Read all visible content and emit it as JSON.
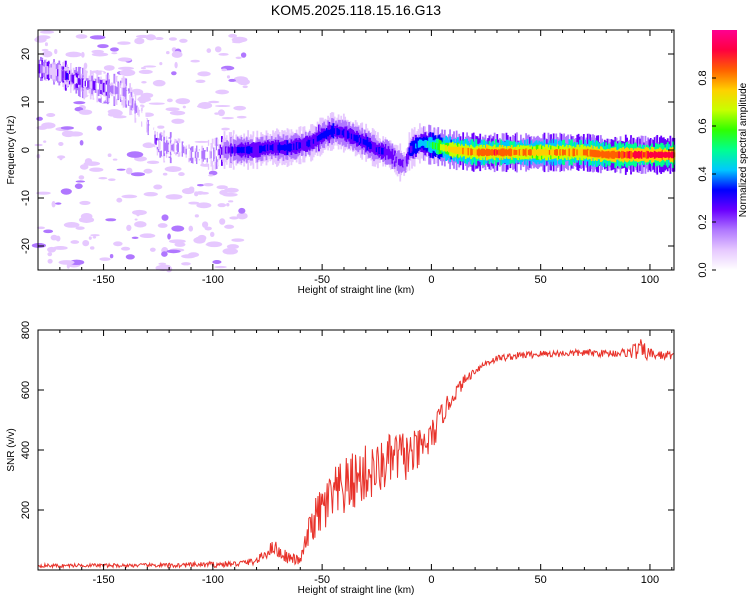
{
  "title": "KOM5.2025.118.15.16.G13",
  "chart_data": [
    {
      "type": "heatmap",
      "xlabel": "Height of straight line (km)",
      "ylabel": "Frequency (Hz)",
      "xlim": [
        -180,
        111
      ],
      "ylim": [
        -25,
        25
      ],
      "xticks": [
        -150,
        -100,
        -50,
        0,
        50,
        100
      ],
      "xtick_labels": [
        "-150",
        "-100",
        "-50",
        "0",
        "50",
        "100"
      ],
      "yticks": [
        -20,
        -10,
        0,
        10,
        20
      ],
      "ytick_labels": [
        "-20",
        "-10",
        "0",
        "10",
        "20"
      ],
      "colorbar": {
        "label": "Normalized spectral amplitude",
        "range": [
          0,
          1
        ],
        "ticks": [
          0.0,
          0.2,
          0.4,
          0.6,
          0.8
        ],
        "tick_labels": [
          "0.0",
          "0.2",
          "0.4",
          "0.6",
          "0.8"
        ],
        "colormap": [
          "#ffffff",
          "#e6c8ff",
          "#b077ff",
          "#6a00ff",
          "#0000ff",
          "#00c8ff",
          "#00ff90",
          "#30ff00",
          "#c8ff00",
          "#ffd000",
          "#ff6000",
          "#ff0040",
          "#ff0090"
        ]
      },
      "ridge": {
        "x": [
          -180,
          -170,
          -160,
          -150,
          -140,
          -130,
          -125,
          -120,
          -115,
          -110,
          -100,
          -95,
          -90,
          -85,
          -80,
          -75,
          -70,
          -65,
          -60,
          -55,
          -50,
          -45,
          -40,
          -35,
          -30,
          -25,
          -20,
          -15,
          -12,
          -10,
          -5,
          0,
          5,
          10,
          20,
          30,
          40,
          50,
          60,
          70,
          80,
          90,
          100,
          111
        ],
        "freq": [
          17,
          16,
          14,
          13,
          12,
          5,
          1,
          0.5,
          0.5,
          -1,
          -1,
          0,
          0,
          0,
          0,
          0.5,
          0.5,
          0.5,
          1,
          1.5,
          3,
          4,
          3.5,
          2.5,
          1.5,
          0,
          -0.5,
          -2.5,
          -3,
          0,
          1.5,
          1,
          0.5,
          0,
          -0.5,
          -0.5,
          -0.5,
          -0.5,
          -0.5,
          -0.5,
          -1,
          -1,
          -1,
          -1
        ],
        "amplitude": [
          0.15,
          0.18,
          0.15,
          0.12,
          0.1,
          0.08,
          0.1,
          0.1,
          0.08,
          0.06,
          0.1,
          0.2,
          0.28,
          0.3,
          0.3,
          0.3,
          0.3,
          0.32,
          0.28,
          0.3,
          0.32,
          0.32,
          0.3,
          0.3,
          0.32,
          0.3,
          0.25,
          0.22,
          0.2,
          0.3,
          0.4,
          0.5,
          0.65,
          0.75,
          0.8,
          0.85,
          0.8,
          0.75,
          0.78,
          0.82,
          0.85,
          0.88,
          0.9,
          0.9
        ]
      }
    },
    {
      "type": "line",
      "xlabel": "Height of straight line (km)",
      "ylabel": "SNR (v/v)",
      "xlim": [
        -180,
        111
      ],
      "ylim": [
        0,
        800
      ],
      "xticks": [
        -150,
        -100,
        -50,
        0,
        50,
        100
      ],
      "xtick_labels": [
        "-150",
        "-100",
        "-50",
        "0",
        "50",
        "100"
      ],
      "yticks": [
        200,
        400,
        600,
        800
      ],
      "ytick_labels": [
        "200",
        "400",
        "600",
        "800"
      ],
      "color": "#e8322a",
      "series": [
        {
          "x": [
            -180,
            -170,
            -160,
            -150,
            -140,
            -130,
            -120,
            -110,
            -100,
            -90,
            -80,
            -75,
            -72,
            -70,
            -65,
            -60,
            -55,
            -50,
            -45,
            -40,
            -35,
            -30,
            -25,
            -20,
            -15,
            -10,
            -5,
            0,
            5,
            10,
            15,
            20,
            25,
            30,
            40,
            50,
            60,
            70,
            80,
            90,
            95,
            100,
            105,
            111
          ],
          "values": [
            15,
            14,
            16,
            15,
            15,
            16,
            15,
            17,
            18,
            20,
            30,
            60,
            80,
            60,
            40,
            30,
            150,
            200,
            240,
            270,
            300,
            320,
            330,
            360,
            380,
            380,
            400,
            440,
            520,
            580,
            630,
            665,
            690,
            705,
            715,
            720,
            722,
            724,
            722,
            725,
            735,
            720,
            715,
            718
          ],
          "noise": [
            6,
            6,
            6,
            6,
            6,
            6,
            8,
            8,
            10,
            10,
            12,
            20,
            25,
            25,
            20,
            15,
            60,
            90,
            100,
            100,
            100,
            100,
            90,
            90,
            90,
            80,
            70,
            60,
            40,
            25,
            20,
            12,
            12,
            12,
            12,
            12,
            12,
            12,
            12,
            15,
            40,
            20,
            15,
            15
          ]
        }
      ]
    }
  ]
}
